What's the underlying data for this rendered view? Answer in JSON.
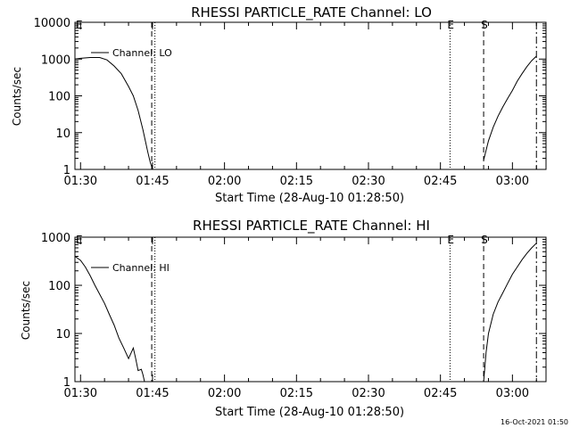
{
  "footer_timestamp": "16-Oct-2021 01:50",
  "chart_data": [
    {
      "type": "line",
      "title": "RHESSI PARTICLE_RATE Channel: LO",
      "xlabel": "Start Time (28-Aug-10 01:28:50)",
      "ylabel": "Counts/sec",
      "y_scale": "log",
      "xlim": [
        "01:28:50",
        "03:07:00"
      ],
      "ylim": [
        1,
        10000
      ],
      "x_ticks": [
        "01:30",
        "01:45",
        "02:00",
        "02:15",
        "02:30",
        "02:45",
        "03:00"
      ],
      "y_ticks": [
        "1",
        "10",
        "100",
        "1000",
        "10000"
      ],
      "legend": "top-left",
      "series": [
        {
          "name": "Channel: LO",
          "segments": [
            {
              "x": [
                "01:28:50",
                "01:30:00",
                "01:32:00",
                "01:34:00",
                "01:35:30",
                "01:37:00",
                "01:38:30",
                "01:40:00",
                "01:41:00",
                "01:42:00",
                "01:43:00",
                "01:43:30",
                "01:44:00",
                "01:44:30",
                "01:45:00"
              ],
              "y": [
                1000,
                1050,
                1100,
                1100,
                950,
                650,
                400,
                180,
                100,
                40,
                12,
                6,
                3,
                1.6,
                1
              ]
            },
            {
              "x": [
                "02:54:00",
                "02:55:00",
                "02:56:00",
                "02:57:00",
                "02:58:00",
                "02:59:00",
                "03:00:00",
                "03:01:00",
                "03:02:00",
                "03:03:00",
                "03:04:00",
                "03:05:00"
              ],
              "y": [
                1.8,
                6,
                14,
                28,
                50,
                85,
                140,
                250,
                400,
                620,
                900,
                1200
              ]
            }
          ]
        }
      ],
      "annotations": [
        {
          "label": "E",
          "x": "01:28:50"
        },
        {
          "label": "E",
          "x": "02:47:00"
        },
        {
          "label": "S",
          "x": "02:54:00"
        }
      ],
      "vertical_lines": [
        {
          "x": "01:44:50",
          "style": "dashed"
        },
        {
          "x": "01:45:30",
          "style": "dotted"
        },
        {
          "x": "02:47:00",
          "style": "dotted"
        },
        {
          "x": "02:54:00",
          "style": "dashed"
        },
        {
          "x": "03:05:00",
          "style": "dash-dot"
        }
      ]
    },
    {
      "type": "line",
      "title": "RHESSI PARTICLE_RATE Channel: HI",
      "xlabel": "Start Time (28-Aug-10 01:28:50)",
      "ylabel": "Counts/sec",
      "y_scale": "log",
      "xlim": [
        "01:28:50",
        "03:07:00"
      ],
      "ylim": [
        1,
        1000
      ],
      "x_ticks": [
        "01:30",
        "01:45",
        "02:00",
        "02:15",
        "02:30",
        "02:45",
        "03:00"
      ],
      "y_ticks": [
        "1",
        "10",
        "100",
        "1000"
      ],
      "legend": "top-left",
      "series": [
        {
          "name": "Channel: HI",
          "segments": [
            {
              "x": [
                "01:28:50",
                "01:30:00",
                "01:31:00",
                "01:32:00",
                "01:33:00",
                "01:34:00",
                "01:35:00",
                "01:36:00",
                "01:37:00",
                "01:38:00",
                "01:39:00",
                "01:40:00",
                "01:41:00",
                "01:41:30",
                "01:42:00",
                "01:42:40",
                "01:43:00",
                "01:43:20"
              ],
              "y": [
                400,
                330,
                240,
                160,
                100,
                65,
                42,
                25,
                15,
                8,
                5,
                3,
                5,
                3,
                1.7,
                1.8,
                1.4,
                1
              ]
            },
            {
              "x": [
                "02:54:00",
                "02:54:30",
                "02:55:00",
                "02:56:00",
                "02:57:00",
                "02:58:00",
                "02:59:00",
                "03:00:00",
                "03:01:00",
                "03:02:00",
                "03:03:00",
                "03:04:00",
                "03:05:00"
              ],
              "y": [
                1,
                4,
                10,
                25,
                45,
                70,
                110,
                170,
                240,
                340,
                460,
                600,
                750
              ]
            }
          ]
        }
      ],
      "annotations": [
        {
          "label": "E",
          "x": "01:28:50"
        },
        {
          "label": "E",
          "x": "02:47:00"
        },
        {
          "label": "S",
          "x": "02:54:00"
        }
      ],
      "vertical_lines": [
        {
          "x": "01:44:50",
          "style": "dashed"
        },
        {
          "x": "01:45:30",
          "style": "dotted"
        },
        {
          "x": "02:47:00",
          "style": "dotted"
        },
        {
          "x": "02:54:00",
          "style": "dashed"
        },
        {
          "x": "03:05:00",
          "style": "dash-dot"
        }
      ]
    }
  ]
}
